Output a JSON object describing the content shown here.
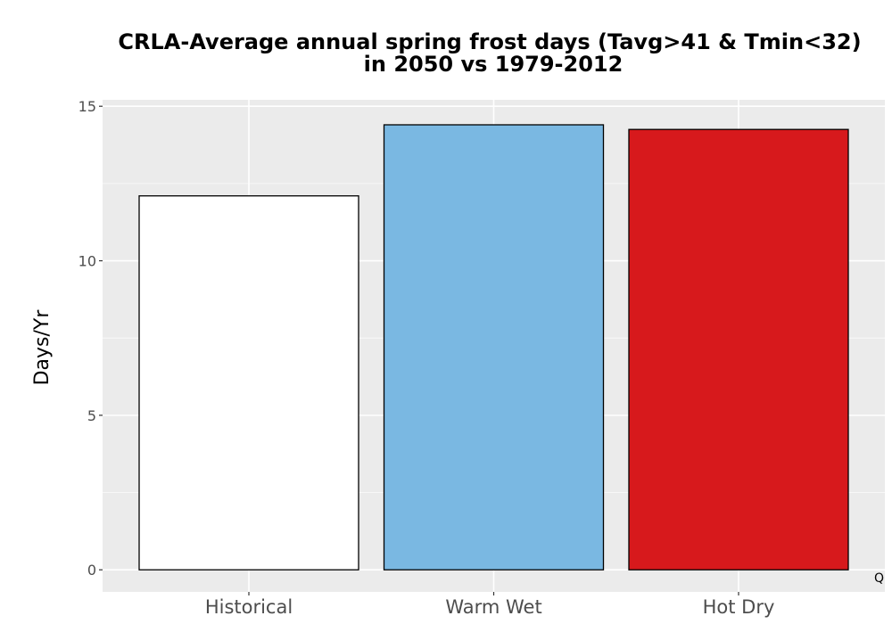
{
  "chart_data": {
    "type": "bar",
    "title": "CRLA-Average annual spring frost days (Tavg>41 & Tmin<32)",
    "subtitle": "in 2050 vs 1979-2012",
    "xlabel": "",
    "ylabel": "Days/Yr",
    "categories": [
      "Historical",
      "Warm Wet",
      "Hot Dry"
    ],
    "values": [
      12.1,
      14.4,
      14.25
    ],
    "bar_colors": [
      "#ffffff",
      "#7ab8e2",
      "#d7191c"
    ],
    "bar_outline_color": "#000000",
    "ylim": [
      0,
      15
    ],
    "yticks": [
      0,
      5,
      10,
      15
    ],
    "ytick_labels": [
      "0",
      "5",
      "10",
      "15"
    ],
    "grid": true,
    "panel_background": "#ebebeb",
    "grid_color": "#ffffff",
    "corner_text": "Q"
  }
}
